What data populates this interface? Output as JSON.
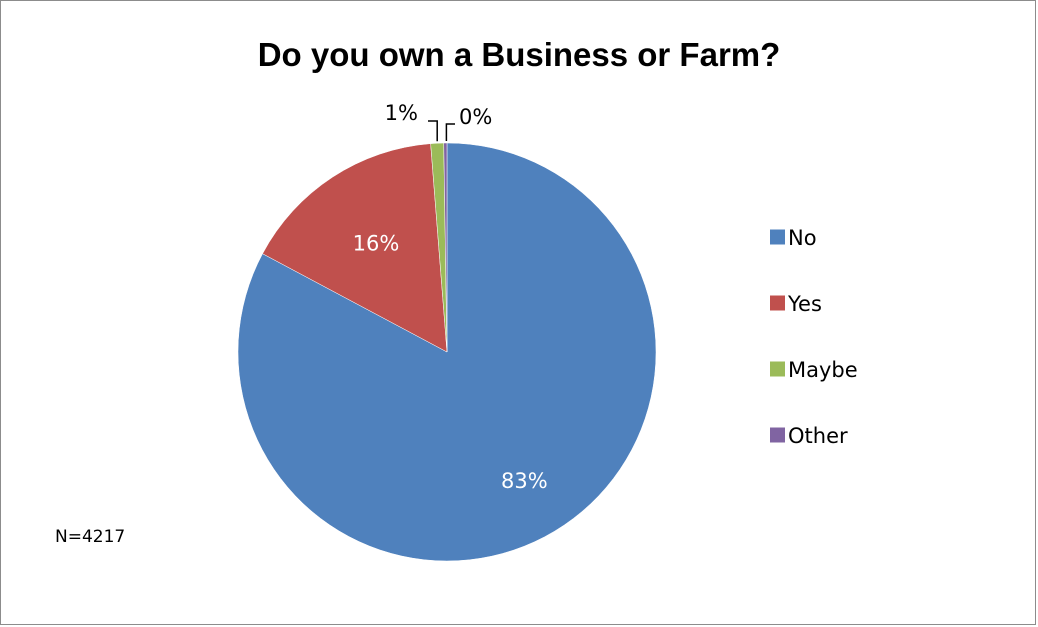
{
  "chart_data": {
    "type": "pie",
    "title": "Do you own a Business or Farm?",
    "categories": [
      "No",
      "Yes",
      "Maybe",
      "Other"
    ],
    "values": [
      83,
      16,
      1,
      0
    ],
    "labels": [
      "83%",
      "16%",
      "1%",
      "0%"
    ],
    "colors": [
      "#4f81bd",
      "#c0504d",
      "#9bbb59",
      "#8064a2"
    ],
    "legend_position": "right",
    "annotation": "N=4217"
  }
}
